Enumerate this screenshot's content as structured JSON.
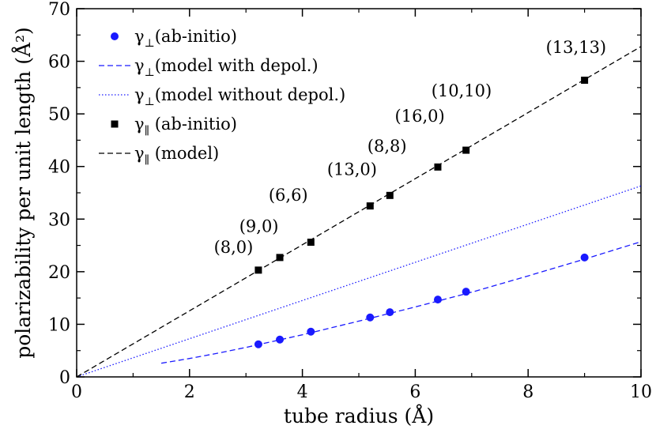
{
  "chart_data": {
    "type": "scatter",
    "title": "",
    "xlabel": "tube radius (Å)",
    "ylabel": "polarizability per unit length (Å²)",
    "xlim": [
      0,
      10
    ],
    "ylim": [
      0,
      70
    ],
    "xticks": [
      "0",
      "2",
      "4",
      "6",
      "8",
      "10"
    ],
    "yticks": [
      "0",
      "10",
      "20",
      "30",
      "40",
      "50",
      "60",
      "70"
    ],
    "grid": false,
    "legend_position": "top-left",
    "colors": {
      "blue": "#1a1aff",
      "black": "#000000"
    },
    "series": [
      {
        "name": "γ⊥(ab-initio)",
        "legend_main": "γ",
        "legend_sub": "⊥",
        "legend_rest": "(ab-initio)",
        "kind": "points",
        "marker": "circle",
        "color": "#1a1aff",
        "points": [
          [
            3.22,
            6.2
          ],
          [
            3.6,
            7.1
          ],
          [
            4.15,
            8.6
          ],
          [
            5.2,
            11.3
          ],
          [
            5.55,
            12.3
          ],
          [
            6.4,
            14.7
          ],
          [
            6.9,
            16.2
          ],
          [
            9.0,
            22.7
          ]
        ]
      },
      {
        "name": "γ⊥(model with depol.)",
        "legend_main": "γ",
        "legend_sub": "⊥",
        "legend_rest": "(model with depol.)",
        "kind": "line",
        "dash": "dashed",
        "color": "#1a1aff",
        "points": [
          [
            1.5,
            2.6
          ],
          [
            2.0,
            3.5
          ],
          [
            2.5,
            4.5
          ],
          [
            3.0,
            5.6
          ],
          [
            3.5,
            6.8
          ],
          [
            4.0,
            8.0
          ],
          [
            5.0,
            10.6
          ],
          [
            6.0,
            13.3
          ],
          [
            7.0,
            16.1
          ],
          [
            8.0,
            19.2
          ],
          [
            9.0,
            22.4
          ],
          [
            10.0,
            25.7
          ]
        ]
      },
      {
        "name": "γ⊥(model without depol.)",
        "legend_main": "γ",
        "legend_sub": "⊥",
        "legend_rest": "(model without depol.)",
        "kind": "line",
        "dash": "dotted",
        "color": "#1a1aff",
        "points": [
          [
            0.0,
            0.0
          ],
          [
            10.0,
            36.3
          ]
        ]
      },
      {
        "name": "γ∥ (ab-initio)",
        "legend_main": "γ",
        "legend_sub": "∥",
        "legend_rest": " (ab-initio)",
        "kind": "points",
        "marker": "square",
        "color": "#000000",
        "points": [
          [
            3.22,
            20.3
          ],
          [
            3.6,
            22.7
          ],
          [
            4.15,
            25.6
          ],
          [
            5.2,
            32.5
          ],
          [
            5.55,
            34.5
          ],
          [
            6.4,
            39.9
          ],
          [
            6.9,
            43.1
          ],
          [
            9.0,
            56.4
          ]
        ]
      },
      {
        "name": "γ∥ (model)",
        "legend_main": "γ",
        "legend_sub": "∥",
        "legend_rest": " (model)",
        "kind": "line",
        "dash": "dashed",
        "color": "#000000",
        "points": [
          [
            0.0,
            0.0
          ],
          [
            10.0,
            62.8
          ]
        ]
      }
    ],
    "annotations": [
      {
        "text": "(8,0)",
        "x": 2.78,
        "y": 23.6
      },
      {
        "text": "(9,0)",
        "x": 3.23,
        "y": 27.6
      },
      {
        "text": "(6,6)",
        "x": 3.75,
        "y": 33.5
      },
      {
        "text": "(13,0)",
        "x": 4.88,
        "y": 38.4
      },
      {
        "text": "(8,8)",
        "x": 5.5,
        "y": 42.8
      },
      {
        "text": "(16,0)",
        "x": 6.08,
        "y": 48.5
      },
      {
        "text": "(10,10)",
        "x": 6.82,
        "y": 53.3
      },
      {
        "text": "(13,13)",
        "x": 8.85,
        "y": 61.6
      }
    ]
  }
}
